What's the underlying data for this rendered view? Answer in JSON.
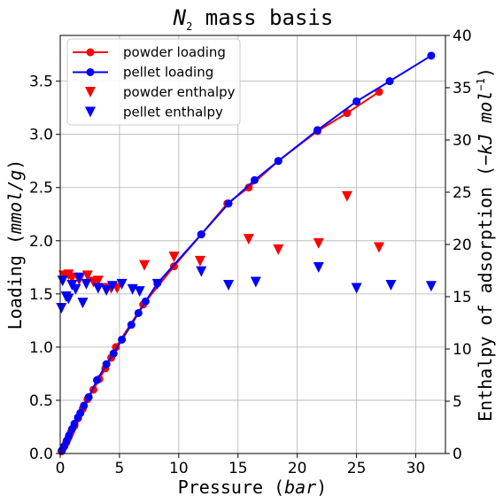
{
  "chart_data": {
    "type": "line",
    "title": "N₂ mass basis",
    "title_parts": {
      "main": "N",
      "sub": "2",
      "rest": " mass basis"
    },
    "xlabel": "Pressure (bar)",
    "xlabel_parts": {
      "text": "Pressure ",
      "italic": "bar"
    },
    "ylabel": "Loading (mmol/g)",
    "ylabel_parts": {
      "text": "Loading ",
      "italic": "mmol/g"
    },
    "y2label": "Enthalpy of adsorption (−kJ/mol⁻¹)",
    "y2label_parts": {
      "text": "Enthalpy of adsorption ",
      "italic": "−kJ mol",
      "sup": "−1"
    },
    "xlim": [
      0,
      32.5
    ],
    "ylim": [
      0,
      3.93
    ],
    "y2lim": [
      0,
      40
    ],
    "xticks": [
      "0",
      "5",
      "10",
      "15",
      "20",
      "25",
      "30"
    ],
    "yticks": [
      "0.0",
      "0.5",
      "1.0",
      "1.5",
      "2.0",
      "2.5",
      "3.0",
      "3.5"
    ],
    "y2ticks": [
      "0",
      "5",
      "10",
      "15",
      "20",
      "25",
      "30",
      "35",
      "40"
    ],
    "grid": true,
    "legend_position": "top-left",
    "series": [
      {
        "name": "powder loading",
        "kind": "line-marker",
        "color": "#ff0000",
        "axis": "left",
        "points": [
          [
            0.1,
            0.02
          ],
          [
            0.3,
            0.06
          ],
          [
            0.5,
            0.1
          ],
          [
            0.7,
            0.15
          ],
          [
            0.9,
            0.2
          ],
          [
            1.2,
            0.26
          ],
          [
            1.5,
            0.33
          ],
          [
            1.9,
            0.42
          ],
          [
            2.3,
            0.51
          ],
          [
            2.8,
            0.6
          ],
          [
            3.3,
            0.7
          ],
          [
            3.8,
            0.8
          ],
          [
            4.3,
            0.9
          ],
          [
            4.7,
            1.0
          ],
          [
            7.0,
            1.4
          ],
          [
            9.6,
            1.76
          ],
          [
            11.9,
            2.06
          ],
          [
            14.1,
            2.35
          ],
          [
            15.9,
            2.5
          ],
          [
            18.4,
            2.75
          ],
          [
            21.7,
            3.03
          ],
          [
            24.2,
            3.2
          ],
          [
            26.9,
            3.4
          ]
        ]
      },
      {
        "name": "pellet loading",
        "kind": "line-marker",
        "color": "#0000ff",
        "axis": "left",
        "points": [
          [
            0.15,
            0.03
          ],
          [
            0.35,
            0.07
          ],
          [
            0.55,
            0.12
          ],
          [
            0.75,
            0.17
          ],
          [
            1.0,
            0.23
          ],
          [
            1.2,
            0.28
          ],
          [
            1.5,
            0.34
          ],
          [
            1.7,
            0.38
          ],
          [
            2.0,
            0.45
          ],
          [
            2.4,
            0.53
          ],
          [
            3.1,
            0.69
          ],
          [
            3.9,
            0.84
          ],
          [
            4.5,
            0.94
          ],
          [
            5.2,
            1.07
          ],
          [
            6.0,
            1.21
          ],
          [
            6.6,
            1.32
          ],
          [
            7.2,
            1.43
          ],
          [
            8.2,
            1.6
          ],
          [
            11.9,
            2.06
          ],
          [
            14.2,
            2.35
          ],
          [
            16.4,
            2.57
          ],
          [
            18.4,
            2.75
          ],
          [
            21.7,
            3.04
          ],
          [
            25.0,
            3.31
          ],
          [
            27.8,
            3.5
          ],
          [
            31.3,
            3.74
          ]
        ]
      },
      {
        "name": "powder enthalpy",
        "kind": "marker-down",
        "color": "#ff0000",
        "axis": "right",
        "points": [
          [
            0.3,
            17.0
          ],
          [
            0.7,
            17.1
          ],
          [
            1.0,
            16.8
          ],
          [
            1.6,
            16.6
          ],
          [
            2.3,
            17.0
          ],
          [
            2.8,
            16.4
          ],
          [
            3.2,
            16.5
          ],
          [
            3.8,
            15.8
          ],
          [
            4.3,
            15.8
          ],
          [
            4.8,
            15.8
          ],
          [
            7.1,
            18.0
          ],
          [
            9.6,
            18.8
          ],
          [
            11.8,
            18.4
          ],
          [
            15.9,
            20.5
          ],
          [
            18.4,
            19.5
          ],
          [
            21.8,
            20.1
          ],
          [
            24.2,
            24.6
          ],
          [
            26.9,
            19.7
          ]
        ]
      },
      {
        "name": "pellet enthalpy",
        "kind": "marker-down",
        "color": "#0000ff",
        "axis": "right",
        "points": [
          [
            0.1,
            13.9
          ],
          [
            0.2,
            16.5
          ],
          [
            0.5,
            15.0
          ],
          [
            0.7,
            14.8
          ],
          [
            1.0,
            16.1
          ],
          [
            1.3,
            15.7
          ],
          [
            1.6,
            16.8
          ],
          [
            1.9,
            14.4
          ],
          [
            2.2,
            16.2
          ],
          [
            3.2,
            15.8
          ],
          [
            3.9,
            15.6
          ],
          [
            4.4,
            16.0
          ],
          [
            5.2,
            16.2
          ],
          [
            6.1,
            15.7
          ],
          [
            6.7,
            15.5
          ],
          [
            8.2,
            16.2
          ],
          [
            11.9,
            17.4
          ],
          [
            14.2,
            16.1
          ],
          [
            16.5,
            16.4
          ],
          [
            21.8,
            17.8
          ],
          [
            25.0,
            15.8
          ],
          [
            27.9,
            16.1
          ],
          [
            31.3,
            16.0
          ]
        ]
      }
    ]
  }
}
